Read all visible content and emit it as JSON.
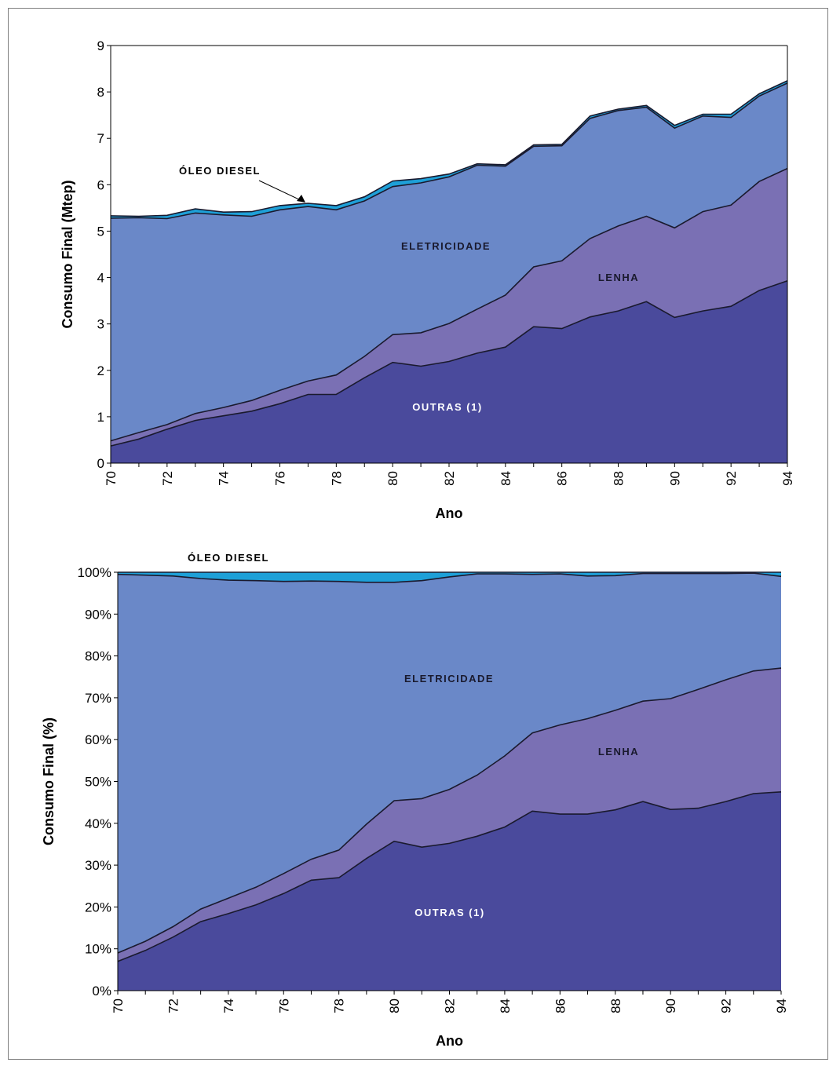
{
  "colors": {
    "diesel": "#4a4a9c",
    "eletricidade": "#7a70b4",
    "lenha": "#6a88c8",
    "outras": "#1ea0d8",
    "outline": "#1a1a2e"
  },
  "chart_data": [
    {
      "type": "area",
      "stacked": true,
      "xlabel": "Ano",
      "ylabel": "Consumo Final (Mtep)",
      "ylim": [
        0,
        9
      ],
      "yticks": [
        "0",
        "1",
        "2",
        "3",
        "4",
        "5",
        "6",
        "7",
        "8",
        "9"
      ],
      "xticks": [
        "70",
        "72",
        "74",
        "76",
        "78",
        "80",
        "82",
        "84",
        "86",
        "88",
        "90",
        "92",
        "94"
      ],
      "x": [
        70,
        71,
        72,
        73,
        74,
        75,
        76,
        77,
        78,
        79,
        80,
        81,
        82,
        83,
        84,
        85,
        86,
        87,
        88,
        89,
        90,
        91,
        92,
        93,
        94
      ],
      "series": [
        {
          "name": "ÓLEO DIESEL",
          "values": [
            0.37,
            0.52,
            0.73,
            0.92,
            1.02,
            1.12,
            1.28,
            1.48,
            1.48,
            1.84,
            2.17,
            2.09,
            2.19,
            2.37,
            2.5,
            2.94,
            2.9,
            3.15,
            3.28,
            3.48,
            3.14,
            3.28,
            3.38,
            3.72,
            3.93
          ]
        },
        {
          "name": "ELETRICIDADE",
          "values": [
            0.11,
            0.14,
            0.1,
            0.15,
            0.18,
            0.23,
            0.29,
            0.29,
            0.42,
            0.46,
            0.6,
            0.72,
            0.82,
            0.95,
            1.12,
            1.29,
            1.46,
            1.69,
            1.83,
            1.84,
            1.93,
            2.14,
            2.18,
            2.35,
            2.42
          ]
        },
        {
          "name": "LENHA",
          "values": [
            4.8,
            4.63,
            4.44,
            4.32,
            4.15,
            3.97,
            3.89,
            3.76,
            3.56,
            3.35,
            3.19,
            3.23,
            3.16,
            3.1,
            2.78,
            2.6,
            2.48,
            2.59,
            2.49,
            2.35,
            2.15,
            2.06,
            1.89,
            1.84,
            1.84
          ]
        },
        {
          "name": "OUTRAS (1)",
          "values": [
            0.05,
            0.03,
            0.07,
            0.09,
            0.06,
            0.1,
            0.09,
            0.07,
            0.09,
            0.09,
            0.12,
            0.09,
            0.06,
            0.03,
            0.03,
            0.03,
            0.03,
            0.05,
            0.03,
            0.04,
            0.06,
            0.04,
            0.07,
            0.05,
            0.05
          ]
        }
      ],
      "annotations": [
        "OUTRAS (1)",
        "LENHA",
        "ELETRICIDADE",
        "ÓLEO DIESEL"
      ]
    },
    {
      "type": "area",
      "stacked": true,
      "percent": true,
      "xlabel": "Ano",
      "ylabel": "Consumo Final (%)",
      "ylim": [
        0,
        100
      ],
      "yticks": [
        "0%",
        "10%",
        "20%",
        "30%",
        "40%",
        "50%",
        "60%",
        "70%",
        "80%",
        "90%",
        "100%"
      ],
      "xticks": [
        "70",
        "72",
        "74",
        "76",
        "78",
        "80",
        "82",
        "84",
        "86",
        "88",
        "90",
        "92",
        "94"
      ],
      "x": [
        70,
        71,
        72,
        73,
        74,
        75,
        76,
        77,
        78,
        79,
        80,
        81,
        82,
        83,
        84,
        85,
        86,
        87,
        88,
        89,
        90,
        91,
        92,
        93,
        94
      ],
      "series": [
        {
          "name": "ÓLEO DIESEL",
          "values": [
            7.0,
            9.6,
            12.8,
            16.5,
            18.4,
            20.5,
            23.2,
            26.4,
            27.0,
            31.6,
            35.7,
            34.3,
            35.2,
            36.9,
            39.1,
            42.9,
            42.2,
            42.2,
            43.2,
            45.2,
            43.3,
            43.6,
            45.2,
            47.1,
            47.5
          ]
        },
        {
          "name": "ELETRICIDADE",
          "values": [
            2.0,
            2.2,
            2.5,
            3.0,
            3.7,
            4.2,
            4.8,
            5.0,
            6.6,
            8.2,
            9.7,
            11.6,
            12.9,
            14.6,
            17.0,
            18.7,
            21.3,
            22.8,
            23.8,
            24.0,
            26.5,
            28.4,
            29.1,
            29.3,
            29.6
          ]
        },
        {
          "name": "LENHA",
          "values": [
            90.5,
            87.5,
            83.8,
            79.0,
            76.0,
            73.3,
            69.8,
            66.5,
            64.2,
            57.8,
            52.2,
            52.1,
            50.8,
            48.1,
            43.5,
            37.9,
            36.1,
            34.1,
            32.2,
            30.5,
            29.9,
            27.7,
            25.4,
            23.4,
            21.9
          ]
        },
        {
          "name": "OUTRAS (1)",
          "values": [
            0.5,
            0.7,
            0.9,
            1.5,
            1.9,
            2.0,
            2.2,
            2.1,
            2.2,
            2.4,
            2.4,
            2.0,
            1.1,
            0.4,
            0.4,
            0.5,
            0.4,
            0.9,
            0.8,
            0.3,
            0.3,
            0.3,
            0.3,
            0.2,
            1.0
          ]
        }
      ],
      "annotations": [
        "OUTRAS (1)",
        "LENHA",
        "ELETRICIDADE",
        "ÓLEO DIESEL"
      ]
    }
  ]
}
